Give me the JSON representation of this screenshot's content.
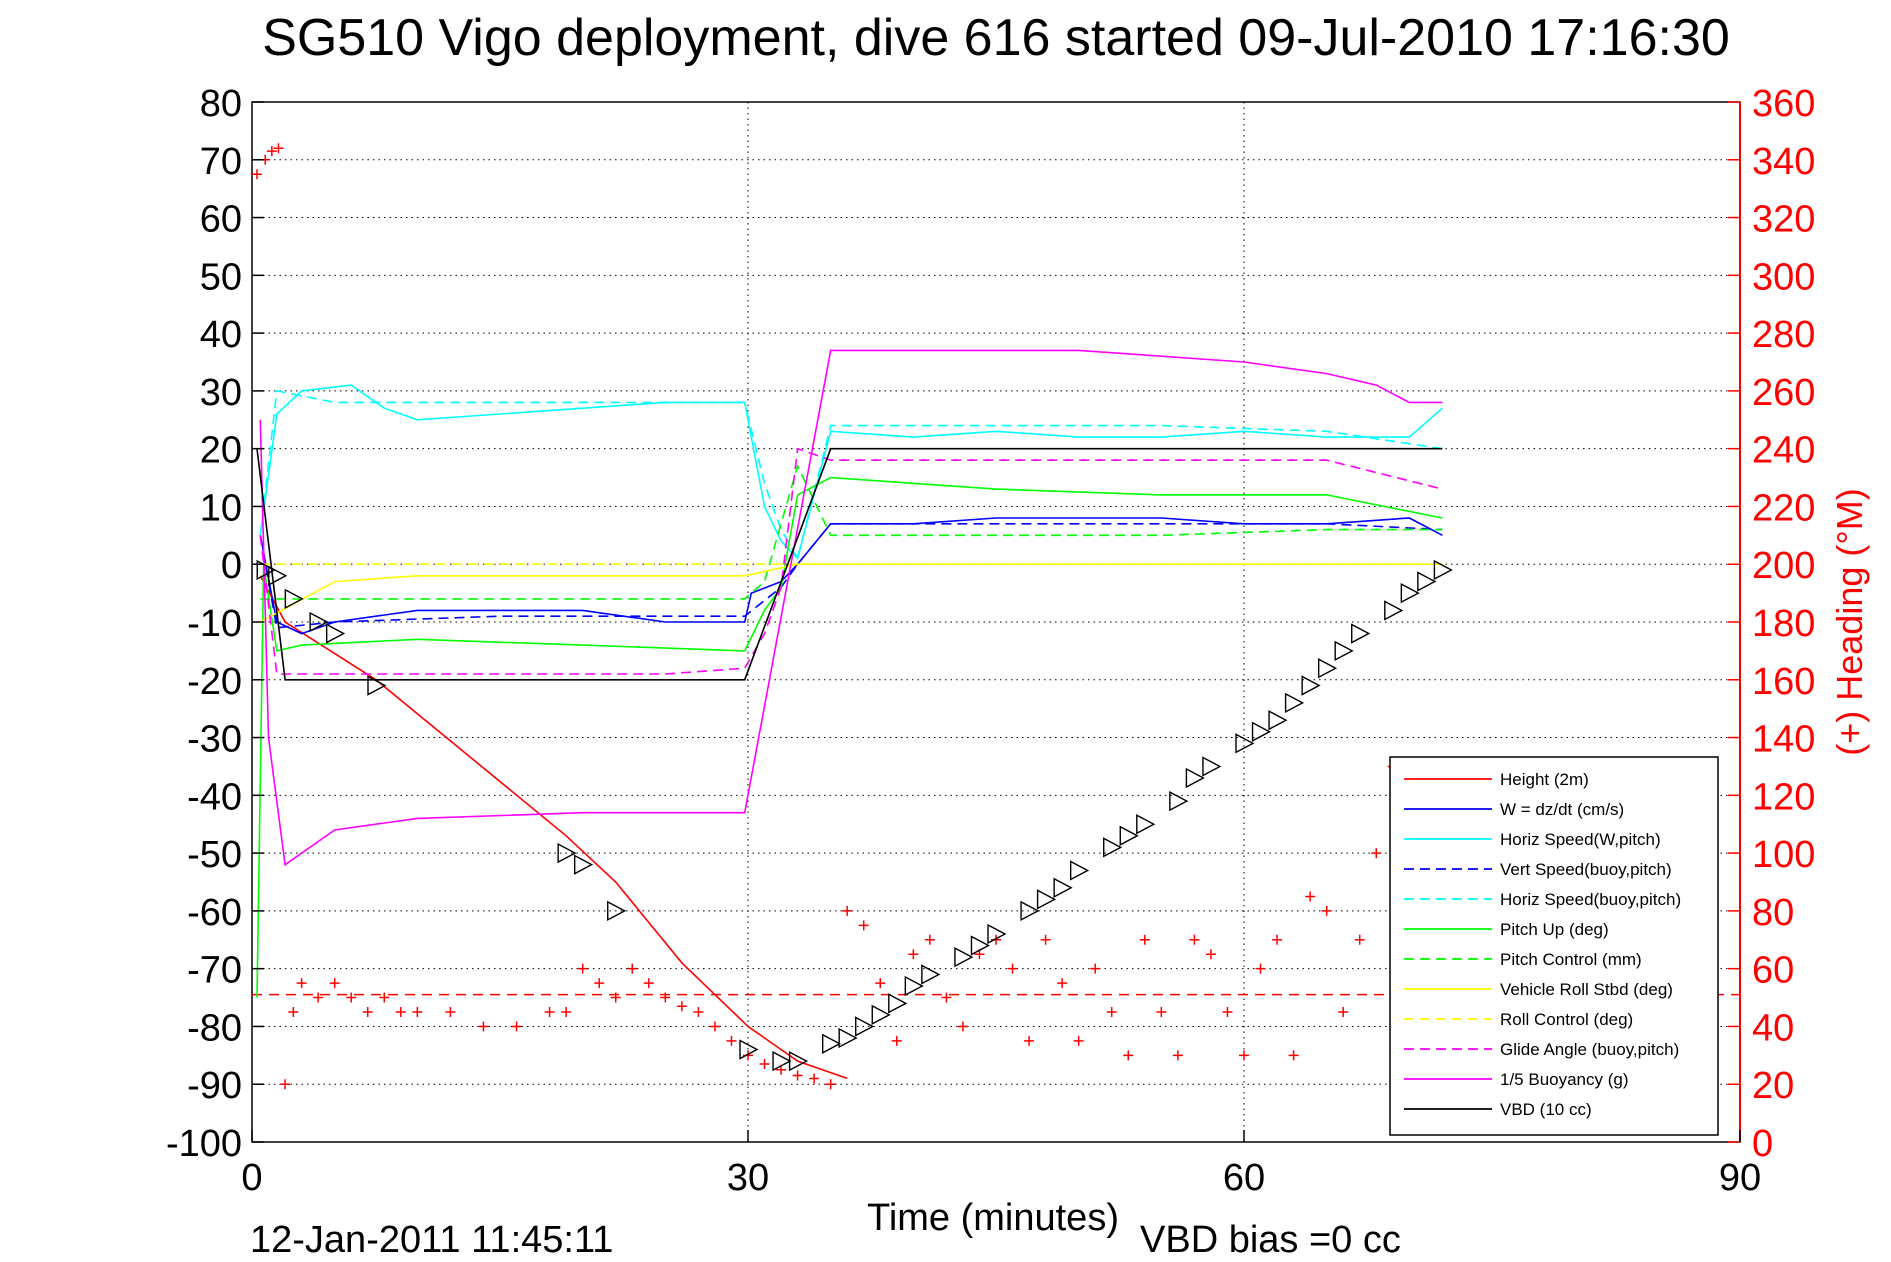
{
  "chart_data": {
    "type": "line",
    "title": "SG510 Vigo deployment, dive 616 started 09-Jul-2010 17:16:30",
    "xlabel": "Time (minutes)",
    "ylabel": "",
    "y2label": "(+) Heading (°M)",
    "footer_date": "12-Jan-2011 11:45:11",
    "footer_note": "VBD bias =0 cc",
    "xlim": [
      0,
      90
    ],
    "ylim": [
      -100,
      80
    ],
    "y2lim": [
      0,
      360
    ],
    "xticks": [
      "0",
      "30",
      "60",
      "90"
    ],
    "yticks": [
      "80",
      "70",
      "60",
      "50",
      "40",
      "30",
      "20",
      "10",
      "0",
      "-10",
      "-20",
      "-30",
      "-40",
      "-50",
      "-60",
      "-70",
      "-80",
      "-90",
      "-100"
    ],
    "y2ticks": [
      "360",
      "340",
      "320",
      "300",
      "280",
      "260",
      "240",
      "220",
      "200",
      "180",
      "160",
      "140",
      "120",
      "100",
      "80",
      "60",
      "40",
      "20",
      "0"
    ],
    "grid": true,
    "legend_position": "bottom-right",
    "colors": {
      "height": "#ff0000",
      "w": "#0000ff",
      "horiz_speed_w": "#00ffff",
      "vert_speed_buoy": "#0000ff",
      "horiz_speed_buoy": "#00ffff",
      "pitch_up": "#00ff00",
      "pitch_control": "#00ff00",
      "roll": "#ffff00",
      "roll_control": "#ffff00",
      "glide_angle": "#ff00ff",
      "buoyancy": "#ff00ff",
      "vbd": "#000000",
      "heading": "#ff0000",
      "right_axis": "#ff0000"
    },
    "series": [
      {
        "name": "Height (2m)",
        "style": "solid",
        "color": "#ff0000",
        "x": [
          0.5,
          2,
          7.5,
          19,
          22,
          26,
          30,
          33,
          36
        ],
        "y": [
          -2,
          -10,
          -20,
          -47,
          -55,
          -69,
          -80,
          -86,
          -89
        ]
      },
      {
        "name": "W = dz/dt (cm/s)",
        "style": "solid",
        "color": "#0000ff",
        "x": [
          0.5,
          1.5,
          3,
          5,
          10,
          15,
          20,
          25,
          29.8,
          30.2,
          32,
          33,
          35,
          40,
          45,
          50,
          55,
          60,
          65,
          70,
          72
        ],
        "y": [
          5,
          -10,
          -12,
          -10,
          -8,
          -8,
          -8,
          -10,
          -10,
          -5,
          -3,
          0,
          7,
          7,
          8,
          8,
          8,
          7,
          7,
          8,
          5
        ]
      },
      {
        "name": "Horiz Speed(W,pitch)",
        "style": "solid",
        "color": "#00ffff",
        "x": [
          0.5,
          1.5,
          3,
          6,
          8,
          10,
          15,
          20,
          25,
          29.8,
          31,
          32,
          33,
          34,
          35,
          40,
          45,
          50,
          55,
          60,
          65,
          70,
          72
        ],
        "y": [
          5,
          26,
          30,
          31,
          27,
          25,
          26,
          27,
          28,
          28,
          10,
          4,
          1,
          12,
          23,
          22,
          23,
          22,
          22,
          23,
          22,
          22,
          27
        ]
      },
      {
        "name": "Vert Speed(buoy,pitch)",
        "style": "dashed",
        "color": "#0000ff",
        "x": [
          0.5,
          1.5,
          5,
          15,
          25,
          29.8,
          32,
          33,
          35,
          45,
          55,
          65,
          72
        ],
        "y": [
          5,
          -11,
          -10,
          -9,
          -9,
          -9,
          -4,
          0,
          7,
          7,
          7,
          7,
          6
        ]
      },
      {
        "name": "Horiz Speed(buoy,pitch)",
        "style": "dashed",
        "color": "#00ffff",
        "x": [
          0.5,
          1.5,
          5,
          15,
          25,
          29.8,
          31,
          32,
          33,
          35,
          45,
          55,
          65,
          72
        ],
        "y": [
          5,
          30,
          28,
          28,
          28,
          28,
          14,
          6,
          1,
          24,
          24,
          24,
          23,
          20
        ]
      },
      {
        "name": "Pitch Up (deg)",
        "style": "solid",
        "color": "#00ff00",
        "x": [
          0.3,
          0.7,
          1.5,
          3,
          10,
          20,
          29.8,
          31,
          32,
          33,
          35,
          45,
          55,
          65,
          72
        ],
        "y": [
          -75,
          0,
          -15,
          -14,
          -13,
          -14,
          -15,
          -8,
          -4,
          12,
          15,
          13,
          12,
          12,
          8
        ]
      },
      {
        "name": "Pitch Control (mm)",
        "style": "dashed",
        "color": "#00ff00",
        "x": [
          0.5,
          1.5,
          10,
          20,
          29.8,
          31,
          33,
          35,
          45,
          55,
          65,
          72
        ],
        "y": [
          -6,
          -6,
          -6,
          -6,
          -6,
          -3,
          17,
          5,
          5,
          5,
          6,
          6
        ]
      },
      {
        "name": "Vehicle Roll Stbd (deg)",
        "style": "solid",
        "color": "#ffff00",
        "x": [
          0.5,
          5,
          10,
          15,
          20,
          25,
          29.8,
          33,
          40,
          45,
          50,
          55,
          60,
          65,
          70,
          72
        ],
        "y": [
          -10,
          -3,
          -2,
          -2,
          -2,
          -2,
          -2,
          0,
          0,
          0,
          0,
          0,
          0,
          0,
          0,
          0
        ]
      },
      {
        "name": "Roll Control (deg)",
        "style": "dashed",
        "color": "#ffff00",
        "x": [
          0.5,
          10,
          20,
          29.8,
          33,
          45,
          60,
          72
        ],
        "y": [
          0,
          0,
          0,
          0,
          0,
          0,
          0,
          0
        ]
      },
      {
        "name": "Glide Angle (buoy,pitch)",
        "style": "dashed",
        "color": "#ff00ff",
        "x": [
          0.5,
          1.5,
          5,
          15,
          25,
          29.8,
          31,
          32,
          33,
          35,
          45,
          55,
          65,
          72
        ],
        "y": [
          5,
          -19,
          -19,
          -19,
          -19,
          -18,
          -12,
          -4,
          20,
          18,
          18,
          18,
          18,
          13
        ]
      },
      {
        "name": "1/5 Buoyancy (g)",
        "style": "solid",
        "color": "#ff00ff",
        "x": [
          0.5,
          1,
          2,
          5,
          10,
          20,
          29.8,
          35,
          50,
          60,
          65,
          68,
          70,
          72
        ],
        "y": [
          25,
          -30,
          -52,
          -46,
          -44,
          -43,
          -43,
          37,
          37,
          35,
          33,
          31,
          28,
          28
        ]
      },
      {
        "name": "VBD (10 cc)",
        "style": "solid",
        "color": "#000000",
        "x": [
          0.3,
          2,
          10,
          20,
          29.8,
          35,
          45,
          60,
          72
        ],
        "y": [
          20,
          -20,
          -20,
          -20,
          -20,
          20,
          20,
          20,
          20
        ]
      },
      {
        "name": "(+) Heading",
        "style": "markers",
        "color": "#ff0000",
        "axis": "right",
        "x": [
          0.3,
          0.8,
          1.2,
          1.6,
          2,
          2.5,
          3,
          4,
          5,
          6,
          7,
          8,
          9,
          10,
          12,
          14,
          16,
          18,
          19,
          20,
          21,
          22,
          23,
          24,
          25,
          26,
          27,
          28,
          29,
          30,
          31,
          32,
          33,
          34,
          35,
          36,
          37,
          38,
          39,
          40,
          41,
          42,
          43,
          44,
          45,
          46,
          47,
          48,
          49,
          50,
          51,
          52,
          53,
          54,
          55,
          56,
          57,
          58,
          59,
          60,
          61,
          62,
          63,
          64,
          65,
          66,
          67,
          68,
          69,
          70,
          71
        ],
        "y": [
          335,
          340,
          343,
          344,
          20,
          45,
          55,
          50,
          55,
          50,
          45,
          50,
          45,
          45,
          45,
          40,
          40,
          45,
          45,
          60,
          55,
          50,
          60,
          55,
          50,
          47,
          45,
          40,
          35,
          30,
          27,
          25,
          23,
          22,
          20,
          80,
          75,
          55,
          35,
          65,
          70,
          50,
          40,
          65,
          70,
          60,
          35,
          70,
          55,
          35,
          60,
          45,
          30,
          70,
          45,
          30,
          70,
          65,
          45,
          30,
          60,
          70,
          30,
          85,
          80,
          45,
          70,
          100,
          130,
          45,
          35
        ]
      }
    ],
    "markers_triangles": {
      "x": [
        0.8,
        1.5,
        2.5,
        4,
        5,
        7.5,
        19,
        20,
        22,
        30,
        32,
        33,
        35,
        36,
        37,
        38,
        39,
        40,
        41,
        43,
        44,
        45,
        47,
        48,
        49,
        50,
        52,
        53,
        54,
        56,
        57,
        58,
        60,
        61,
        62,
        63,
        64,
        65,
        66,
        67,
        69,
        70,
        71,
        72
      ],
      "y": [
        -1,
        -2,
        -6,
        -10,
        -12,
        -21,
        -50,
        -52,
        -60,
        -84,
        -86,
        -86,
        -83,
        -82,
        -80,
        -78,
        -76,
        -73,
        -71,
        -68,
        -66,
        -64,
        -60,
        -58,
        -56,
        -53,
        -49,
        -47,
        -45,
        -41,
        -37,
        -35,
        -31,
        -29,
        -27,
        -24,
        -21,
        -18,
        -15,
        -12,
        -8,
        -5,
        -3,
        -1
      ]
    },
    "reference_lines": [
      {
        "axis": "right",
        "y": 51,
        "style": "dashed",
        "color": "#ff0000"
      }
    ]
  }
}
